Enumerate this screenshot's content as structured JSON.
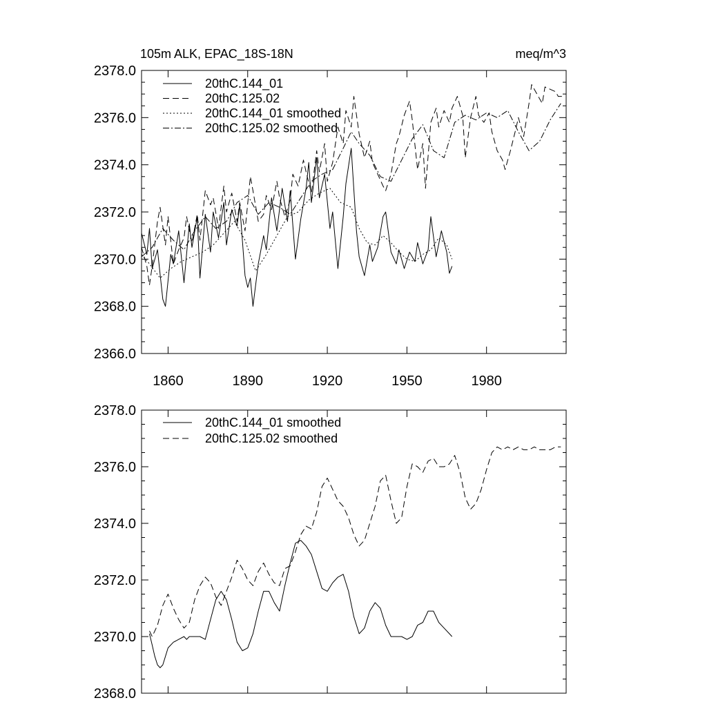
{
  "chart_data": [
    {
      "type": "line",
      "title": "105m ALK, EPAC_18S-18N",
      "units": "meq/m^3",
      "xlabel": "",
      "ylabel": "",
      "xlim": [
        1850,
        2010
      ],
      "ylim": [
        2366,
        2378
      ],
      "xticks": [
        1860,
        1890,
        1920,
        1950,
        1980
      ],
      "xtick_labels": [
        "1860",
        "1890",
        "1920",
        "1950",
        "1980"
      ],
      "yticks": [
        2366,
        2368,
        2370,
        2372,
        2374,
        2376,
        2378
      ],
      "ytick_labels": [
        "2366.0",
        "2368.0",
        "2370.0",
        "2372.0",
        "2374.0",
        "2376.0",
        "2378.0"
      ],
      "legend_position": "top-left",
      "series": [
        {
          "name": "20thC.144_01",
          "style": "solid",
          "x": [
            1850,
            1852,
            1853,
            1854,
            1856,
            1858,
            1859,
            1861,
            1862,
            1864,
            1866,
            1868,
            1869,
            1871,
            1872,
            1874,
            1876,
            1877,
            1879,
            1881,
            1882,
            1884,
            1886,
            1887,
            1889,
            1890,
            1891,
            1892,
            1894,
            1896,
            1897,
            1899,
            1901,
            1903,
            1905,
            1906,
            1908,
            1910,
            1912,
            1913,
            1914,
            1916,
            1917,
            1919,
            1921,
            1922,
            1924,
            1926,
            1927,
            1929,
            1931,
            1932,
            1934,
            1936,
            1937,
            1939,
            1941,
            1942,
            1944,
            1946,
            1947,
            1949,
            1951,
            1953,
            1954,
            1956,
            1958,
            1959,
            1961,
            1963,
            1965,
            1966,
            1967
          ],
          "y": [
            2371.1,
            2370.2,
            2371.3,
            2369.6,
            2370.4,
            2368.3,
            2368.0,
            2370.2,
            2369.8,
            2371.2,
            2369.0,
            2371.5,
            2370.5,
            2371.8,
            2369.2,
            2371.9,
            2370.3,
            2372.0,
            2370.9,
            2372.4,
            2370.6,
            2372.1,
            2371.4,
            2372.3,
            2369.3,
            2368.8,
            2369.2,
            2368.0,
            2369.8,
            2371.0,
            2370.4,
            2372.6,
            2371.2,
            2373.0,
            2371.6,
            2372.9,
            2370.0,
            2371.7,
            2373.0,
            2374.1,
            2372.4,
            2374.3,
            2372.6,
            2373.6,
            2371.3,
            2372.0,
            2369.6,
            2371.8,
            2373.2,
            2374.7,
            2371.2,
            2370.1,
            2369.3,
            2370.6,
            2369.9,
            2370.5,
            2371.8,
            2372.0,
            2370.3,
            2369.8,
            2370.4,
            2369.6,
            2370.3,
            2369.9,
            2370.7,
            2369.8,
            2370.4,
            2371.8,
            2370.1,
            2371.2,
            2370.3,
            2369.4,
            2369.7
          ]
        },
        {
          "name": "20thC.125.02",
          "style": "dashed",
          "x": [
            1850,
            1852,
            1853,
            1854,
            1856,
            1857,
            1859,
            1860,
            1862,
            1864,
            1866,
            1867,
            1869,
            1871,
            1872,
            1874,
            1876,
            1877,
            1879,
            1881,
            1882,
            1884,
            1886,
            1887,
            1889,
            1891,
            1892,
            1894,
            1896,
            1897,
            1899,
            1901,
            1902,
            1904,
            1906,
            1907,
            1909,
            1911,
            1912,
            1914,
            1916,
            1917,
            1919,
            1920,
            1922,
            1924,
            1926,
            1927,
            1929,
            1930,
            1932,
            1934,
            1936,
            1937,
            1939,
            1941,
            1942,
            1944,
            1946,
            1947,
            1949,
            1951,
            1952,
            1954,
            1956,
            1957,
            1959,
            1961,
            1962,
            1964,
            1966,
            1967,
            1969,
            1971,
            1972,
            1974,
            1976,
            1977,
            1979,
            1981,
            1982,
            1984,
            1986,
            1987,
            1989,
            1991,
            1992,
            1994,
            1996,
            1997,
            1999,
            2001,
            2002,
            2004,
            2006,
            2007,
            2009
          ],
          "y": [
            2370.5,
            2369.7,
            2368.9,
            2369.7,
            2371.6,
            2372.2,
            2370.6,
            2371.8,
            2369.8,
            2370.4,
            2370.9,
            2371.8,
            2370.7,
            2371.9,
            2370.8,
            2372.9,
            2372.3,
            2372.6,
            2371.3,
            2373.1,
            2372.0,
            2372.8,
            2371.6,
            2372.4,
            2371.2,
            2373.5,
            2372.9,
            2371.6,
            2371.9,
            2372.7,
            2372.1,
            2373.3,
            2372.6,
            2371.8,
            2372.5,
            2373.6,
            2373.1,
            2374.2,
            2373.7,
            2372.8,
            2374.6,
            2373.7,
            2374.9,
            2373.3,
            2374.1,
            2375.6,
            2374.9,
            2376.3,
            2375.6,
            2376.9,
            2375.3,
            2374.3,
            2375.0,
            2374.1,
            2373.6,
            2373.1,
            2372.9,
            2373.6,
            2374.9,
            2375.2,
            2376.1,
            2376.7,
            2375.9,
            2373.8,
            2374.9,
            2373.0,
            2375.8,
            2376.4,
            2375.6,
            2376.3,
            2375.8,
            2376.4,
            2376.9,
            2376.1,
            2374.3,
            2376.0,
            2376.9,
            2376.1,
            2375.8,
            2376.2,
            2375.4,
            2374.6,
            2374.2,
            2373.8,
            2374.6,
            2375.5,
            2376.0,
            2375.2,
            2376.6,
            2377.4,
            2377.0,
            2376.6,
            2377.3,
            2377.2,
            2377.1,
            2376.9,
            2376.9
          ]
        },
        {
          "name": "20thC.144_01 smoothed",
          "style": "dotted",
          "x": [
            1850,
            1853,
            1857,
            1861,
            1865,
            1869,
            1873,
            1877,
            1881,
            1885,
            1889,
            1893,
            1897,
            1901,
            1905,
            1909,
            1913,
            1917,
            1921,
            1925,
            1929,
            1932,
            1935,
            1938,
            1941,
            1944,
            1947,
            1950,
            1953,
            1956,
            1959,
            1962,
            1965,
            1967
          ],
          "y": [
            2370.2,
            2369.8,
            2369.2,
            2369.6,
            2369.9,
            2370.1,
            2370.3,
            2370.6,
            2371.1,
            2371.6,
            2370.8,
            2369.5,
            2370.2,
            2371.0,
            2371.8,
            2372.0,
            2372.5,
            2372.8,
            2373.0,
            2372.4,
            2372.2,
            2371.3,
            2370.7,
            2370.6,
            2371.0,
            2370.7,
            2370.3,
            2370.0,
            2369.9,
            2370.2,
            2370.4,
            2370.9,
            2370.6,
            2370.0
          ]
        },
        {
          "name": "20thC.125.02 smoothed",
          "style": "dashdot",
          "x": [
            1850,
            1854,
            1858,
            1862,
            1866,
            1870,
            1874,
            1878,
            1882,
            1886,
            1890,
            1894,
            1898,
            1902,
            1906,
            1910,
            1914,
            1918,
            1922,
            1926,
            1929,
            1932,
            1936,
            1940,
            1944,
            1948,
            1952,
            1956,
            1960,
            1964,
            1968,
            1972,
            1976,
            1980,
            1984,
            1988,
            1992,
            1996,
            2000,
            2004,
            2008
          ],
          "y": [
            2370.1,
            2370.5,
            2371.3,
            2370.8,
            2370.4,
            2371.2,
            2371.8,
            2371.3,
            2371.6,
            2372.4,
            2372.7,
            2371.9,
            2372.4,
            2372.2,
            2371.9,
            2372.6,
            2373.3,
            2373.6,
            2373.8,
            2374.7,
            2375.4,
            2374.9,
            2374.4,
            2373.5,
            2373.3,
            2374.2,
            2375.1,
            2375.7,
            2374.6,
            2374.3,
            2375.8,
            2376.1,
            2375.9,
            2376.2,
            2376.0,
            2376.3,
            2375.4,
            2374.6,
            2375.0,
            2375.9,
            2376.6
          ]
        }
      ]
    },
    {
      "type": "line",
      "title": "",
      "xlabel": "",
      "ylabel": "",
      "xlim": [
        1850,
        2010
      ],
      "ylim": [
        2368,
        2378
      ],
      "xticks": [
        1860,
        1890,
        1920,
        1950,
        1980
      ],
      "yticks": [
        2368,
        2370,
        2372,
        2374,
        2376,
        2378
      ],
      "ytick_labels": [
        "2368.0",
        "2370.0",
        "2372.0",
        "2374.0",
        "2376.0",
        "2378.0"
      ],
      "legend_position": "top-left",
      "series": [
        {
          "name": "20thC.144_01 smoothed",
          "style": "solid",
          "x": [
            1853,
            1854,
            1855,
            1856,
            1857,
            1858,
            1859,
            1860,
            1862,
            1864,
            1866,
            1867,
            1868,
            1870,
            1872,
            1874,
            1876,
            1878,
            1880,
            1882,
            1884,
            1886,
            1888,
            1890,
            1892,
            1894,
            1896,
            1898,
            1900,
            1902,
            1904,
            1906,
            1908,
            1910,
            1912,
            1914,
            1916,
            1918,
            1920,
            1922,
            1924,
            1926,
            1928,
            1930,
            1932,
            1934,
            1936,
            1938,
            1940,
            1942,
            1944,
            1946,
            1948,
            1950,
            1952,
            1954,
            1956,
            1958,
            1960,
            1962,
            1964,
            1966,
            1967
          ],
          "y": [
            2370.1,
            2369.7,
            2369.3,
            2369.0,
            2368.9,
            2369.0,
            2369.3,
            2369.6,
            2369.8,
            2369.9,
            2370.0,
            2369.9,
            2370.0,
            2370.0,
            2370.0,
            2369.9,
            2370.6,
            2371.3,
            2371.6,
            2371.3,
            2370.6,
            2369.8,
            2369.5,
            2369.6,
            2370.1,
            2370.9,
            2371.6,
            2371.6,
            2371.2,
            2370.9,
            2371.8,
            2372.6,
            2373.3,
            2373.4,
            2373.2,
            2372.9,
            2372.3,
            2371.7,
            2371.6,
            2371.9,
            2372.1,
            2372.2,
            2371.6,
            2370.7,
            2370.1,
            2370.3,
            2370.9,
            2371.2,
            2371.0,
            2370.4,
            2370.0,
            2370.0,
            2370.0,
            2369.9,
            2370.0,
            2370.4,
            2370.5,
            2370.9,
            2370.9,
            2370.5,
            2370.3,
            2370.1,
            2370.0
          ]
        },
        {
          "name": "20thC.125.02 smoothed",
          "style": "dashed",
          "x": [
            1853,
            1854,
            1856,
            1858,
            1860,
            1862,
            1864,
            1866,
            1868,
            1870,
            1872,
            1874,
            1876,
            1878,
            1880,
            1882,
            1884,
            1886,
            1888,
            1890,
            1892,
            1894,
            1896,
            1898,
            1900,
            1902,
            1904,
            1906,
            1908,
            1910,
            1912,
            1914,
            1916,
            1918,
            1920,
            1922,
            1924,
            1926,
            1928,
            1930,
            1932,
            1934,
            1936,
            1938,
            1940,
            1942,
            1944,
            1946,
            1948,
            1950,
            1952,
            1954,
            1956,
            1958,
            1960,
            1962,
            1964,
            1966,
            1968,
            1970,
            1972,
            1974,
            1976,
            1978,
            1980,
            1982,
            1984,
            1986,
            1988,
            1990,
            1992,
            1994,
            1996,
            1998,
            2000,
            2002,
            2004,
            2006,
            2008
          ],
          "y": [
            2370.2,
            2370.0,
            2370.4,
            2371.1,
            2371.5,
            2371.0,
            2370.6,
            2370.3,
            2370.5,
            2371.3,
            2371.8,
            2372.1,
            2371.9,
            2371.4,
            2371.1,
            2371.6,
            2372.1,
            2372.7,
            2372.4,
            2372.0,
            2371.8,
            2372.3,
            2372.6,
            2372.2,
            2371.9,
            2371.8,
            2372.4,
            2372.5,
            2373.0,
            2373.6,
            2373.9,
            2373.8,
            2374.4,
            2375.3,
            2375.6,
            2375.2,
            2374.8,
            2374.6,
            2374.2,
            2373.6,
            2373.2,
            2373.4,
            2374.0,
            2374.6,
            2375.5,
            2375.7,
            2374.8,
            2374.0,
            2374.2,
            2375.3,
            2376.1,
            2376.0,
            2375.8,
            2376.2,
            2376.3,
            2376.0,
            2376.0,
            2376.1,
            2376.4,
            2375.8,
            2374.9,
            2374.5,
            2374.7,
            2375.2,
            2375.9,
            2376.5,
            2376.7,
            2376.6,
            2376.7,
            2376.6,
            2376.7,
            2376.6,
            2376.6,
            2376.7,
            2376.6,
            2376.6,
            2376.6,
            2376.7,
            2376.7
          ]
        }
      ]
    }
  ]
}
